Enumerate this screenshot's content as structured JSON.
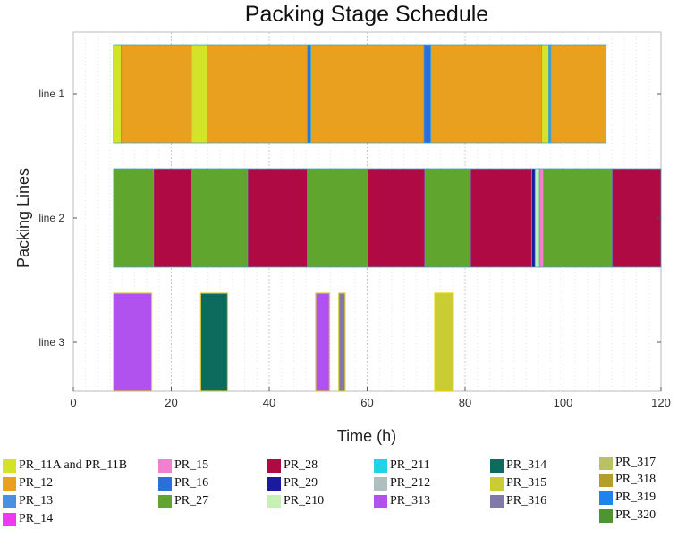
{
  "chart_data": {
    "type": "gantt",
    "title": "Packing Stage Schedule",
    "xlabel": "Time (h)",
    "ylabel": "Packing Lines",
    "xlim": [
      0,
      120
    ],
    "xticks": [
      0,
      20,
      40,
      60,
      80,
      100,
      120
    ],
    "xtick_labels": [
      "0",
      "20",
      "40",
      "60",
      "80",
      "100",
      "120"
    ],
    "lines": [
      "line 1",
      "line 2",
      "line 3"
    ],
    "colors": {
      "PR_11A and PR_11B": "#d4e22a",
      "PR_12": "#e8a01e",
      "PR_13": "#4a90e2",
      "PR_14": "#ee3aee",
      "PR_15": "#f27fcf",
      "PR_16": "#2a6fdc",
      "PR_27": "#5fa52e",
      "PR_28": "#b00a45",
      "PR_29": "#1a1a9e",
      "PR_210": "#c7f0b4",
      "PR_211": "#22d3e6",
      "PR_212": "#aebfbf",
      "PR_313": "#b152ee",
      "PR_314": "#0d6b5e",
      "PR_315": "#c9cc33",
      "PR_316": "#8379a8",
      "PR_317": "#b8c264",
      "PR_318": "#b39e2a",
      "PR_319": "#2282ec",
      "PR_320": "#4f9434"
    },
    "tasks": [
      {
        "line": "line 1",
        "product": "PR_11A and PR_11B",
        "start": 8.2,
        "end": 9.8
      },
      {
        "line": "line 1",
        "product": "PR_12",
        "start": 9.8,
        "end": 24.1
      },
      {
        "line": "line 1",
        "product": "PR_11A and PR_11B",
        "start": 24.1,
        "end": 27.3
      },
      {
        "line": "line 1",
        "product": "PR_12",
        "start": 27.3,
        "end": 47.8
      },
      {
        "line": "line 1",
        "product": "PR_16",
        "start": 47.8,
        "end": 48.5
      },
      {
        "line": "line 1",
        "product": "PR_12",
        "start": 48.5,
        "end": 71.6
      },
      {
        "line": "line 1",
        "product": "PR_16",
        "start": 71.6,
        "end": 73.0
      },
      {
        "line": "line 1",
        "product": "PR_12",
        "start": 73.0,
        "end": 95.6
      },
      {
        "line": "line 1",
        "product": "PR_11A and PR_11B",
        "start": 95.6,
        "end": 97.1
      },
      {
        "line": "line 1",
        "product": "PR_13",
        "start": 97.1,
        "end": 97.5
      },
      {
        "line": "line 1",
        "product": "PR_12",
        "start": 97.5,
        "end": 108.8
      },
      {
        "line": "line 2",
        "product": "PR_27",
        "start": 8.2,
        "end": 16.4
      },
      {
        "line": "line 2",
        "product": "PR_28",
        "start": 16.4,
        "end": 24.0
      },
      {
        "line": "line 2",
        "product": "PR_27",
        "start": 24.0,
        "end": 35.6
      },
      {
        "line": "line 2",
        "product": "PR_28",
        "start": 35.6,
        "end": 47.8
      },
      {
        "line": "line 2",
        "product": "PR_27",
        "start": 47.8,
        "end": 60.0
      },
      {
        "line": "line 2",
        "product": "PR_28",
        "start": 60.0,
        "end": 71.8
      },
      {
        "line": "line 2",
        "product": "PR_27",
        "start": 71.8,
        "end": 81.1
      },
      {
        "line": "line 2",
        "product": "PR_28",
        "start": 81.1,
        "end": 93.6
      },
      {
        "line": "line 2",
        "product": "PR_29",
        "start": 93.6,
        "end": 94.3
      },
      {
        "line": "line 2",
        "product": "PR_210",
        "start": 94.3,
        "end": 95.2
      },
      {
        "line": "line 2",
        "product": "PR_15",
        "start": 95.2,
        "end": 96.0
      },
      {
        "line": "line 2",
        "product": "PR_27",
        "start": 96.0,
        "end": 110.0
      },
      {
        "line": "line 2",
        "product": "PR_28",
        "start": 110.0,
        "end": 120.0
      },
      {
        "line": "line 3",
        "product": "PR_313",
        "start": 8.2,
        "end": 16.0
      },
      {
        "line": "line 3",
        "product": "PR_314",
        "start": 26.0,
        "end": 31.5
      },
      {
        "line": "line 3",
        "product": "PR_313",
        "start": 49.5,
        "end": 52.3
      },
      {
        "line": "line 3",
        "product": "PR_316",
        "start": 54.2,
        "end": 55.5
      },
      {
        "line": "line 3",
        "product": "PR_315",
        "start": 73.8,
        "end": 77.6
      }
    ],
    "legend": [
      "PR_11A and PR_11B",
      "PR_12",
      "PR_13",
      "PR_14",
      "PR_15",
      "PR_16",
      "PR_27",
      "PR_28",
      "PR_29",
      "PR_210",
      "PR_211",
      "PR_212",
      "PR_313",
      "PR_314",
      "PR_315",
      "PR_316",
      "PR_317",
      "PR_318",
      "PR_319",
      "PR_320"
    ],
    "legend_placement": "bottom",
    "grid": "vertical minor dotted"
  }
}
